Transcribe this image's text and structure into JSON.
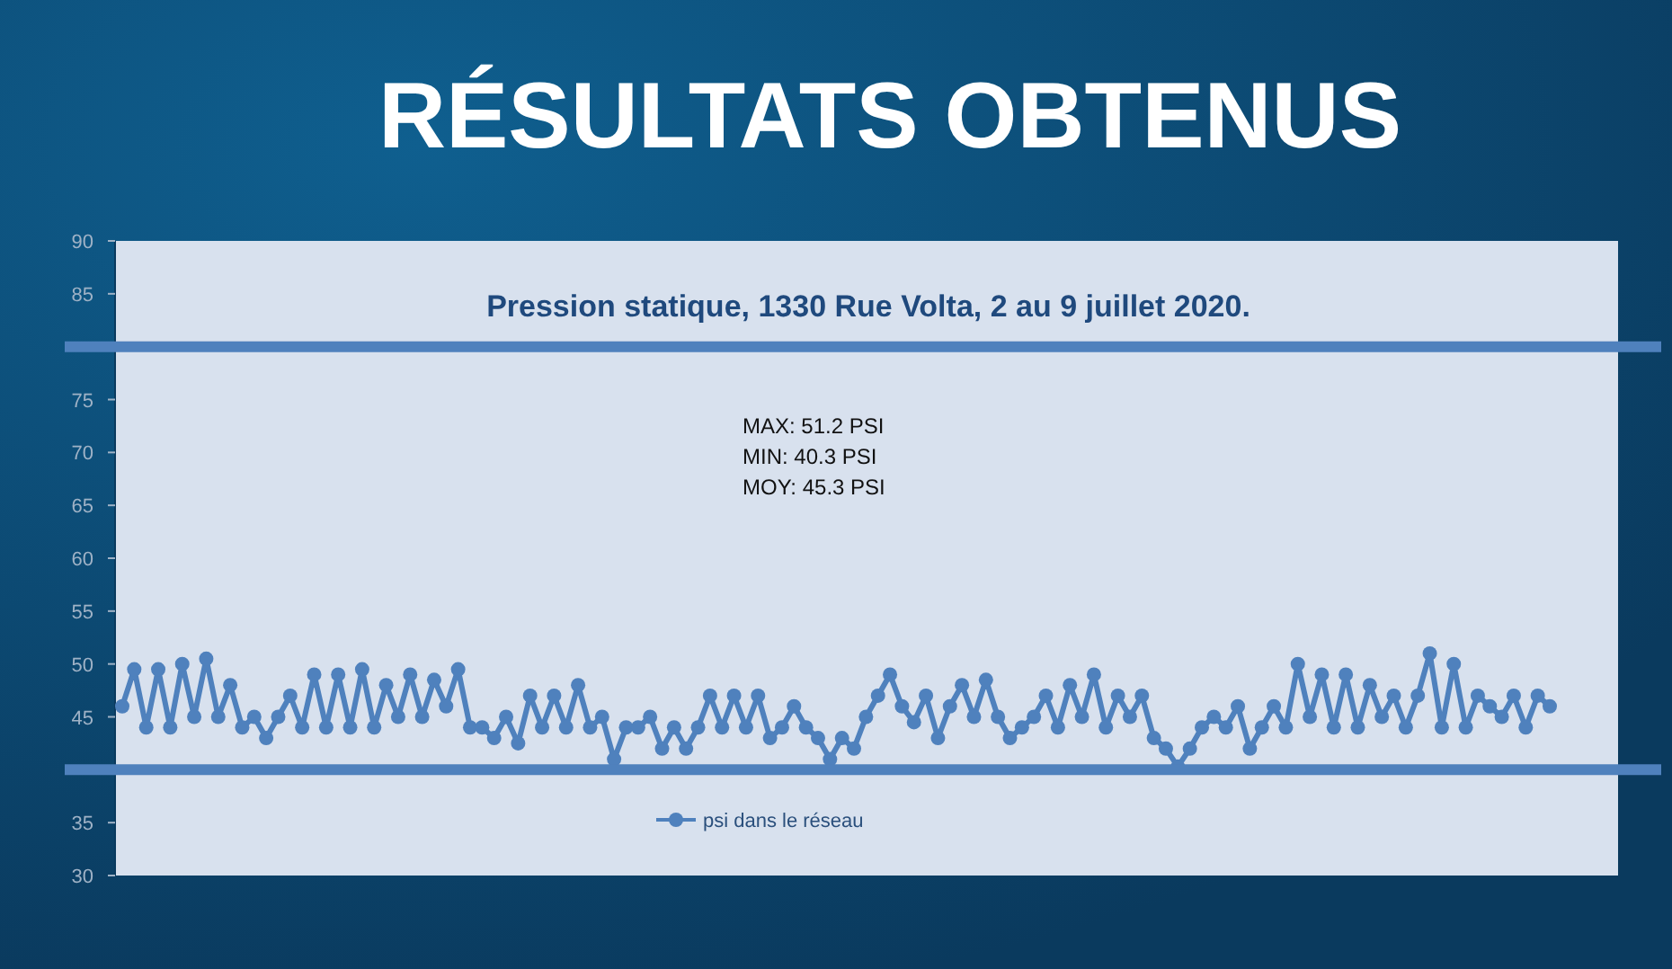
{
  "chart_data": {
    "type": "line",
    "title": "RÉSULTATS OBTENUS",
    "subtitle": "Pression statique,  1330 Rue Volta,  2 au 9 juillet  2020.",
    "annotations": [
      "MAX: 51.2 PSI",
      "MIN: 40.3 PSI",
      "MOY: 45.3 PSI"
    ],
    "categories": [
      null,
      null,
      null,
      null,
      null,
      null,
      null,
      null,
      null,
      null,
      null,
      null,
      null,
      null,
      null,
      null,
      null,
      null,
      null,
      null,
      null,
      null,
      null,
      null,
      null,
      null,
      null,
      null,
      null,
      null,
      null,
      null,
      null,
      null,
      null,
      null,
      null,
      null,
      null,
      null,
      null,
      null,
      null,
      null,
      null,
      null,
      null,
      null,
      null,
      null,
      null,
      null,
      null,
      null,
      null,
      null,
      null,
      null,
      null,
      null,
      null,
      null,
      null,
      null,
      null,
      null,
      null,
      null,
      null,
      null,
      null,
      null,
      null,
      null,
      null,
      null,
      null,
      null,
      null,
      null,
      null,
      null,
      null,
      null,
      null,
      null,
      null,
      null,
      null,
      null,
      null,
      null,
      null,
      null,
      null,
      null,
      null,
      null,
      null,
      null,
      null,
      null,
      null,
      null,
      null,
      null,
      null,
      null,
      null,
      null,
      null,
      null,
      null,
      null,
      null,
      null,
      null,
      null,
      null,
      null
    ],
    "series": [
      {
        "name": "psi dans le réseau",
        "color": "#4f81bd",
        "values": [
          46,
          49.5,
          44,
          49.5,
          44,
          50,
          45,
          50.5,
          45,
          48,
          44,
          45,
          43,
          45,
          47,
          44,
          49,
          44,
          49,
          44,
          49.5,
          44,
          48,
          45,
          49,
          45,
          48.5,
          46,
          49.5,
          44,
          44,
          43,
          45,
          42.5,
          47,
          44,
          47,
          44,
          48,
          44,
          45,
          41,
          44,
          44,
          45,
          42,
          44,
          42,
          44,
          47,
          44,
          47,
          44,
          47,
          43,
          44,
          46,
          44,
          43,
          41,
          43,
          42,
          45,
          47,
          49,
          46,
          44.5,
          47,
          43,
          46,
          48,
          45,
          48.5,
          45,
          43,
          44,
          45,
          47,
          44,
          48,
          45,
          49,
          44,
          47,
          45,
          47,
          43,
          42,
          40.3,
          42,
          44,
          45,
          44,
          46,
          42,
          44,
          46,
          44,
          50,
          45,
          49,
          44,
          49,
          44,
          48,
          45,
          47,
          44,
          47,
          51,
          44,
          50,
          44,
          47,
          46,
          45,
          47,
          44,
          47,
          46
        ]
      }
    ],
    "ylim": [
      30,
      90
    ],
    "yticks": [
      30,
      35,
      {
        "value": 40,
        "label": null
      },
      45,
      50,
      55,
      60,
      65,
      70,
      75,
      {
        "value": 80,
        "label": null
      },
      85,
      90
    ],
    "ref_lines": [
      {
        "axis": "y",
        "value": 80,
        "color": "#4f81bd"
      },
      {
        "axis": "y",
        "value": 40,
        "color": "#4f81bd"
      }
    ],
    "legend": "bottom",
    "marker": "circle",
    "line_style": "solid",
    "tick_labels": "y",
    "grid": false
  }
}
